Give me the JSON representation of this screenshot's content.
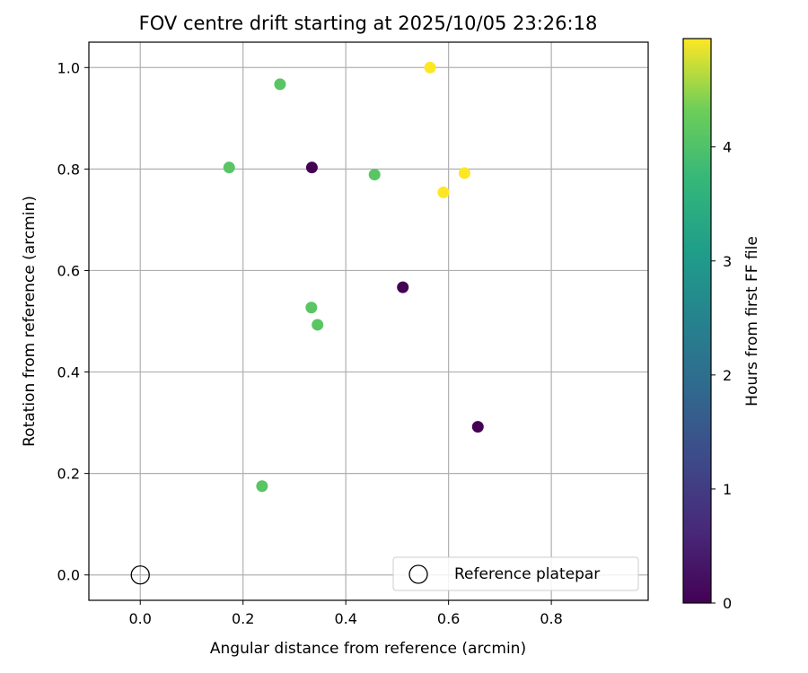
{
  "chart_data": {
    "type": "scatter",
    "title": "FOV centre drift starting at 2025/10/05 23:26:18",
    "xlabel": "Angular distance from reference (arcmin)",
    "ylabel": "Rotation from reference (arcmin)",
    "xlim": [
      -0.1,
      0.9885
    ],
    "ylim": [
      -0.05,
      1.05
    ],
    "xticks": [
      "0.0",
      "0.2",
      "0.4",
      "0.6",
      "0.8"
    ],
    "xtick_values": [
      0.0,
      0.2,
      0.4,
      0.6,
      0.8
    ],
    "yticks": [
      "0.0",
      "0.2",
      "0.4",
      "0.6",
      "0.8",
      "1.0"
    ],
    "ytick_values": [
      0.0,
      0.2,
      0.4,
      0.6,
      0.8,
      1.0
    ],
    "grid": true,
    "legend": {
      "position": "lower-right",
      "entries": [
        "Reference platepar"
      ]
    },
    "reference_point": {
      "x": 0.0,
      "y": 0.0
    },
    "colorbar": {
      "label": "Hours from first FF file",
      "min": 0,
      "max": 4.95,
      "ticks": [
        "0",
        "1",
        "2",
        "3",
        "4"
      ],
      "tick_values": [
        0,
        1,
        2,
        3,
        4
      ],
      "colormap": "viridis"
    },
    "points": [
      {
        "x": 0.334,
        "y": 0.803,
        "hours": 0.0
      },
      {
        "x": 0.511,
        "y": 0.567,
        "hours": 0.0
      },
      {
        "x": 0.657,
        "y": 0.292,
        "hours": 0.0
      },
      {
        "x": 0.272,
        "y": 0.967,
        "hours": 4.1
      },
      {
        "x": 0.173,
        "y": 0.803,
        "hours": 4.1
      },
      {
        "x": 0.456,
        "y": 0.789,
        "hours": 4.1
      },
      {
        "x": 0.333,
        "y": 0.527,
        "hours": 4.1
      },
      {
        "x": 0.345,
        "y": 0.493,
        "hours": 4.1
      },
      {
        "x": 0.237,
        "y": 0.175,
        "hours": 4.1
      },
      {
        "x": 0.564,
        "y": 1.0,
        "hours": 4.95
      },
      {
        "x": 0.631,
        "y": 0.792,
        "hours": 4.95
      },
      {
        "x": 0.59,
        "y": 0.754,
        "hours": 4.95
      }
    ]
  }
}
